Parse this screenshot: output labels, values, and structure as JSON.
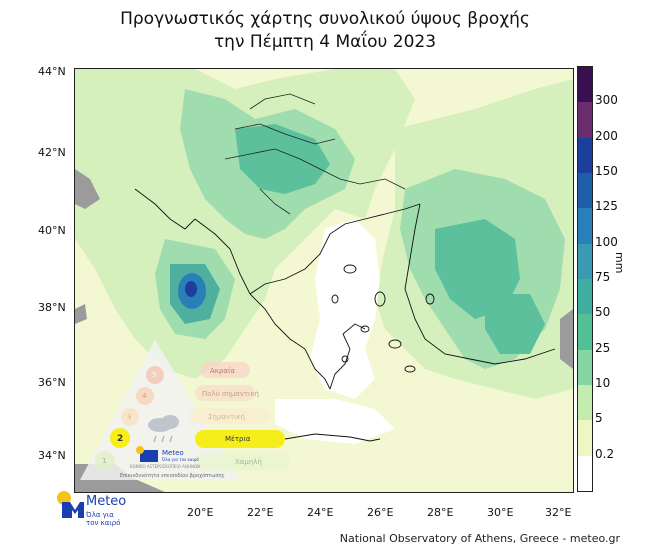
{
  "title": {
    "line1": "Προγνωστικός χάρτης συνολικού ύψους βροχής",
    "line2": "την Πέμπτη 4 Μαΐου 2023"
  },
  "axes": {
    "lat_labels": [
      "44°N",
      "42°N",
      "40°N",
      "38°N",
      "36°N",
      "34°N"
    ],
    "lon_labels": [
      "20°E",
      "22°E",
      "24°E",
      "26°E",
      "28°E",
      "30°E",
      "32°E"
    ]
  },
  "colorbar": {
    "unit": "mm",
    "labels": [
      "300",
      "200",
      "150",
      "125",
      "100",
      "75",
      "50",
      "25",
      "10",
      "5",
      "0.2"
    ],
    "colors": [
      "#3b1050",
      "#6a2d6d",
      "#1b3f9a",
      "#1f5fa8",
      "#2b7fb8",
      "#3a9ab0",
      "#3fae9e",
      "#52bf95",
      "#86d6a3",
      "#c4ecb1",
      "#eef6c5",
      "#ffffff"
    ]
  },
  "map": {
    "colors": {
      "sea": "#f4f8d2",
      "light_rain": "#c9ecb5",
      "moderate_rain": "#8fd6a8",
      "heavy_rain": "#4fb99b",
      "very_heavy_rain": "#2b7fb8",
      "extreme_rain": "#1b3f9a",
      "land_grey": "#9b9b9b"
    }
  },
  "scale_card": {
    "levels": [
      {
        "number": "5",
        "label": "Ακραία"
      },
      {
        "number": "4",
        "label": "Πολύ σημαντική"
      },
      {
        "number": "3",
        "label": "Σημαντική"
      },
      {
        "number": "2",
        "label": "Μέτρια"
      },
      {
        "number": "1",
        "label": "Χαμηλή"
      }
    ],
    "brand": "Meteo",
    "brand_tagline": "Όλα για τον καιρό",
    "institute": "ΕΘΝΙΚΟ ΑΣΤΕΡΟΣΚΟΠΕΙΟ ΑΘΗΝΩΝ",
    "caption": "Επικινδυνότητα επεισοδίου βροχόπτωσης",
    "active_level": "2"
  },
  "logo": {
    "brand": "Meteo",
    "tagline": "Όλα για τον καιρό"
  },
  "footer": "National Observatory of Athens, Greece - meteo.gr"
}
